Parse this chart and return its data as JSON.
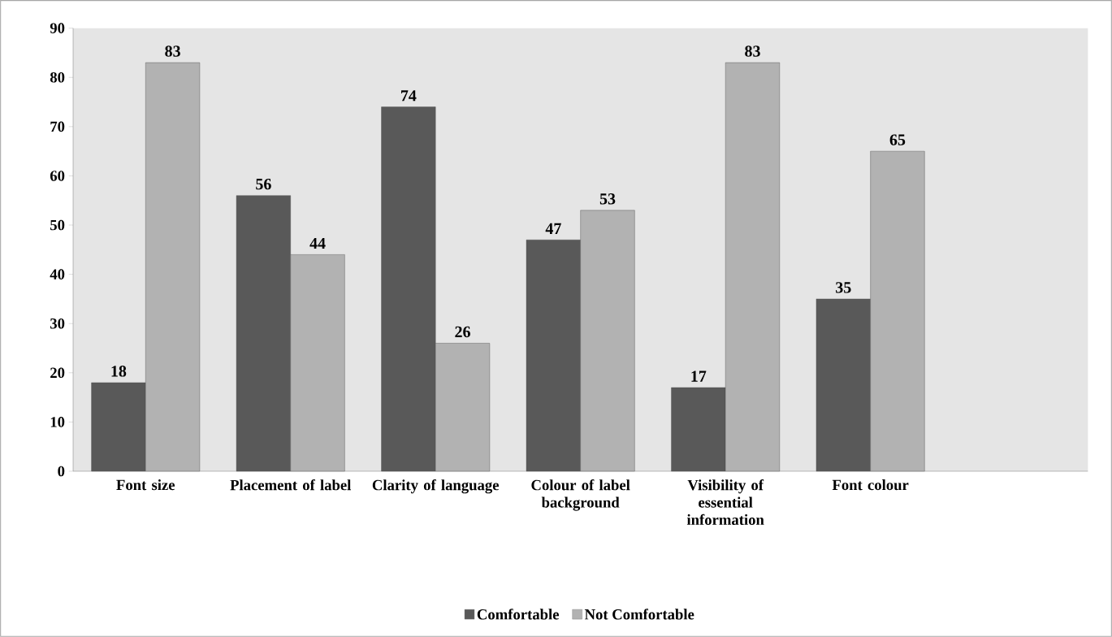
{
  "chart_data": {
    "type": "bar",
    "categories": [
      "Font size",
      "Placement of label",
      "Clarity of language",
      "Colour of label background",
      "Visibility of essential information",
      "Font colour"
    ],
    "series": [
      {
        "name": "Comfortable",
        "color": "#595959",
        "values": [
          18,
          56,
          74,
          47,
          17,
          35
        ]
      },
      {
        "name": "Not Comfortable",
        "color": "#b2b2b2",
        "values": [
          83,
          44,
          26,
          53,
          83,
          65
        ]
      }
    ],
    "ylim": [
      0,
      90
    ],
    "yticks": [
      0,
      10,
      20,
      30,
      40,
      50,
      60,
      70,
      80,
      90
    ],
    "data_labels": true,
    "legend": "bottom",
    "grid": false
  }
}
